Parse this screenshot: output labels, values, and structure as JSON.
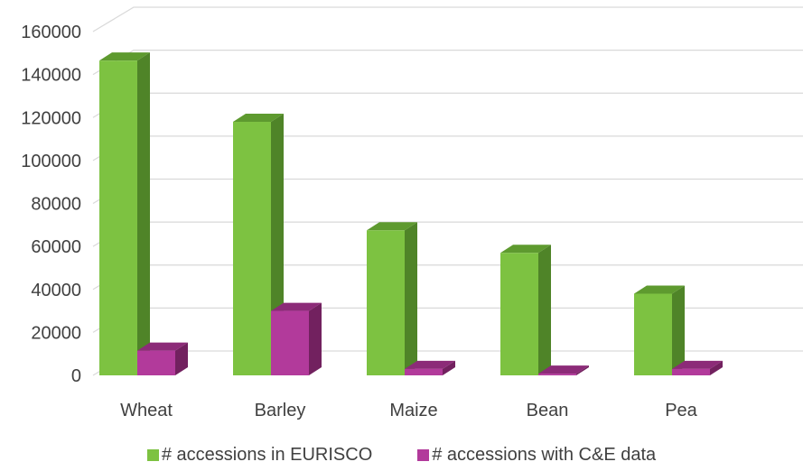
{
  "chart_data": {
    "type": "bar",
    "categories": [
      "Wheat",
      "Barley",
      "Maize",
      "Bean",
      "Pea"
    ],
    "series": [
      {
        "name": "# accessions in EURISCO",
        "values": [
          146500,
          118000,
          67500,
          57000,
          38000
        ],
        "color": "#7DC241",
        "side_color": "#4F8428",
        "top_color": "#5E9A2F"
      },
      {
        "name": "# accessions with C&E data",
        "values": [
          11500,
          30000,
          3000,
          800,
          3000
        ],
        "color": "#B23A9B",
        "side_color": "#72215F",
        "top_color": "#8C2B78"
      }
    ],
    "ylim": [
      0,
      160000
    ],
    "yticks": [
      "0",
      "20000",
      "40000",
      "60000",
      "80000",
      "100000",
      "120000",
      "140000",
      "160000"
    ],
    "grid": true,
    "legend_position": "bottom",
    "title": "",
    "xlabel": "",
    "ylabel": ""
  }
}
